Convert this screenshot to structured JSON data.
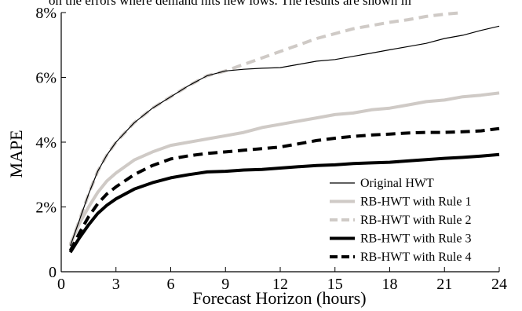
{
  "top_fragment": "on the errors where demand hits new lows. The results are shown in",
  "chart_data": {
    "type": "line",
    "title": "",
    "xlabel": "Forecast Horizon (hours)",
    "ylabel": "MAPE",
    "xlim": [
      0,
      24
    ],
    "ylim": [
      0,
      8
    ],
    "xticks": [
      "0",
      "3",
      "6",
      "9",
      "12",
      "15",
      "18",
      "21",
      "24"
    ],
    "yticks": [
      "0",
      "2%",
      "4%",
      "6%",
      "8%"
    ],
    "grid": false,
    "legend_position": "bottom-right",
    "series": [
      {
        "name": "Original HWT",
        "color": "#000000",
        "style": "thin",
        "points": [
          [
            0.5,
            0.8
          ],
          [
            1,
            1.6
          ],
          [
            1.5,
            2.4
          ],
          [
            2,
            3.1
          ],
          [
            2.5,
            3.6
          ],
          [
            3,
            4.0
          ],
          [
            4,
            4.6
          ],
          [
            5,
            5.05
          ],
          [
            6,
            5.4
          ],
          [
            7,
            5.75
          ],
          [
            8,
            6.05
          ],
          [
            9,
            6.2
          ],
          [
            10,
            6.25
          ],
          [
            11,
            6.28
          ],
          [
            12,
            6.3
          ],
          [
            13,
            6.4
          ],
          [
            14,
            6.5
          ],
          [
            15,
            6.55
          ],
          [
            16,
            6.65
          ],
          [
            17,
            6.75
          ],
          [
            18,
            6.85
          ],
          [
            19,
            6.95
          ],
          [
            20,
            7.05
          ],
          [
            21,
            7.2
          ],
          [
            22,
            7.3
          ],
          [
            23,
            7.45
          ],
          [
            24,
            7.58
          ]
        ]
      },
      {
        "name": "RB-HWT with Rule 1",
        "color": "#cfcac6",
        "style": "thick",
        "points": [
          [
            0.5,
            0.85
          ],
          [
            1,
            1.5
          ],
          [
            1.5,
            2.0
          ],
          [
            2,
            2.45
          ],
          [
            2.5,
            2.8
          ],
          [
            3,
            3.05
          ],
          [
            4,
            3.45
          ],
          [
            5,
            3.7
          ],
          [
            6,
            3.9
          ],
          [
            7,
            4.0
          ],
          [
            8,
            4.1
          ],
          [
            9,
            4.2
          ],
          [
            10,
            4.3
          ],
          [
            11,
            4.45
          ],
          [
            12,
            4.55
          ],
          [
            13,
            4.65
          ],
          [
            14,
            4.75
          ],
          [
            15,
            4.85
          ],
          [
            16,
            4.9
          ],
          [
            17,
            5.0
          ],
          [
            18,
            5.05
          ],
          [
            19,
            5.15
          ],
          [
            20,
            5.25
          ],
          [
            21,
            5.3
          ],
          [
            22,
            5.4
          ],
          [
            23,
            5.45
          ],
          [
            24,
            5.52
          ]
        ]
      },
      {
        "name": "RB-HWT with Rule 2",
        "color": "#cfcac6",
        "style": "thick-dashed",
        "points": [
          [
            0.5,
            0.8
          ],
          [
            1,
            1.6
          ],
          [
            1.5,
            2.4
          ],
          [
            2,
            3.1
          ],
          [
            2.5,
            3.6
          ],
          [
            3,
            4.0
          ],
          [
            4,
            4.6
          ],
          [
            5,
            5.05
          ],
          [
            6,
            5.4
          ],
          [
            7,
            5.75
          ],
          [
            8,
            6.05
          ],
          [
            9,
            6.2
          ],
          [
            10,
            6.4
          ],
          [
            11,
            6.6
          ],
          [
            12,
            6.8
          ],
          [
            13,
            7.0
          ],
          [
            14,
            7.2
          ],
          [
            15,
            7.35
          ],
          [
            16,
            7.5
          ],
          [
            17,
            7.6
          ],
          [
            18,
            7.7
          ],
          [
            19,
            7.78
          ],
          [
            20,
            7.88
          ],
          [
            21,
            7.95
          ],
          [
            22,
            8.0
          ]
        ]
      },
      {
        "name": "RB-HWT with Rule 3",
        "color": "#000000",
        "style": "thick",
        "points": [
          [
            0.5,
            0.6
          ],
          [
            1,
            1.05
          ],
          [
            1.5,
            1.45
          ],
          [
            2,
            1.8
          ],
          [
            2.5,
            2.05
          ],
          [
            3,
            2.25
          ],
          [
            4,
            2.55
          ],
          [
            5,
            2.75
          ],
          [
            6,
            2.9
          ],
          [
            7,
            3.0
          ],
          [
            8,
            3.08
          ],
          [
            9,
            3.1
          ],
          [
            10,
            3.14
          ],
          [
            11,
            3.16
          ],
          [
            12,
            3.2
          ],
          [
            13,
            3.24
          ],
          [
            14,
            3.28
          ],
          [
            15,
            3.3
          ],
          [
            16,
            3.34
          ],
          [
            17,
            3.36
          ],
          [
            18,
            3.38
          ],
          [
            19,
            3.42
          ],
          [
            20,
            3.46
          ],
          [
            21,
            3.5
          ],
          [
            22,
            3.53
          ],
          [
            23,
            3.57
          ],
          [
            24,
            3.62
          ]
        ]
      },
      {
        "name": "RB-HWT with Rule 4",
        "color": "#000000",
        "style": "thick-dashed",
        "points": [
          [
            0.5,
            0.65
          ],
          [
            1,
            1.2
          ],
          [
            1.5,
            1.7
          ],
          [
            2,
            2.1
          ],
          [
            2.5,
            2.4
          ],
          [
            3,
            2.62
          ],
          [
            4,
            3.0
          ],
          [
            5,
            3.28
          ],
          [
            6,
            3.48
          ],
          [
            7,
            3.58
          ],
          [
            8,
            3.65
          ],
          [
            9,
            3.7
          ],
          [
            10,
            3.75
          ],
          [
            11,
            3.8
          ],
          [
            12,
            3.85
          ],
          [
            13,
            3.95
          ],
          [
            14,
            4.05
          ],
          [
            15,
            4.12
          ],
          [
            16,
            4.18
          ],
          [
            17,
            4.22
          ],
          [
            18,
            4.25
          ],
          [
            19,
            4.28
          ],
          [
            20,
            4.3
          ],
          [
            21,
            4.3
          ],
          [
            22,
            4.32
          ],
          [
            23,
            4.35
          ],
          [
            24,
            4.42
          ]
        ]
      }
    ]
  }
}
